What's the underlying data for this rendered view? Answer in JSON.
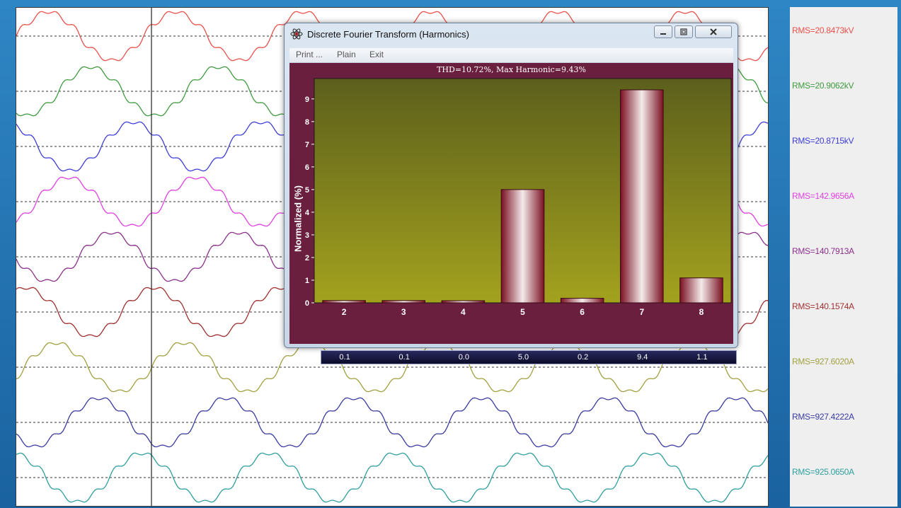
{
  "rms_labels": [
    {
      "text": "RMS=20.8473kV",
      "color": "#e8504a"
    },
    {
      "text": "RMS=20.9062kV",
      "color": "#3f9b3f"
    },
    {
      "text": "RMS=20.8715kV",
      "color": "#3c3cd6"
    },
    {
      "text": "RMS=142.9656A",
      "color": "#e040e0"
    },
    {
      "text": "RMS=140.7913A",
      "color": "#8b2f8b"
    },
    {
      "text": "RMS=140.1574A",
      "color": "#a03030"
    },
    {
      "text": "RMS=927.6020A",
      "color": "#a0a040"
    },
    {
      "text": "RMS=927.4222A",
      "color": "#3a3aa0"
    },
    {
      "text": "RMS=925.0650A",
      "color": "#2f9f9f"
    }
  ],
  "dialog": {
    "title": "Discrete Fourier Transform (Harmonics)",
    "icon": "atom-icon",
    "menu": {
      "print": "Print ...",
      "plain": "Plain",
      "exit": "Exit"
    }
  },
  "chart_data": {
    "type": "bar",
    "title": "THD=10.72%, Max Harmonic=9.43%",
    "ylabel": "Normalized (%)",
    "xlabel": "",
    "categories": [
      "2",
      "3",
      "4",
      "5",
      "6",
      "7",
      "8"
    ],
    "values": [
      0.1,
      0.1,
      0.0,
      5.0,
      0.2,
      9.4,
      1.1
    ],
    "value_labels": [
      "0.1",
      "0.1",
      "0.0",
      "5.0",
      "0.2",
      "9.4",
      "1.1"
    ],
    "row_label": "%",
    "ylim": [
      0,
      9.9
    ],
    "yticks": [
      "0",
      "1",
      "2",
      "3",
      "4",
      "5",
      "6",
      "7",
      "8",
      "9"
    ],
    "grid": false,
    "colors": {
      "bar": "#8a1a2e",
      "plot_top": "#5a5f1a",
      "plot_bottom": "#a0a020"
    }
  }
}
